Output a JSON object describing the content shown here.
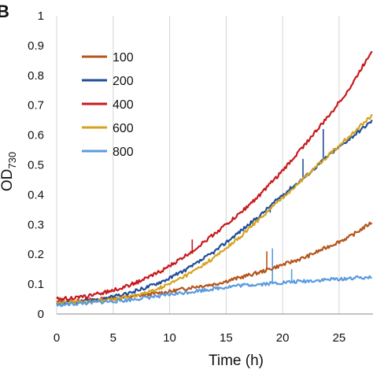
{
  "panel_label": "B",
  "chart_data": {
    "type": "line",
    "xlabel": "Time (h)",
    "ylabel": "OD",
    "ylabel_subscript": "730",
    "xlim": [
      0,
      28
    ],
    "ylim": [
      0,
      1
    ],
    "xticks": [
      0,
      5,
      10,
      15,
      20,
      25
    ],
    "yticks": [
      0,
      0.1,
      0.2,
      0.3,
      0.4,
      0.5,
      0.6,
      0.7,
      0.8,
      0.9,
      1
    ],
    "ytick_labels": [
      "0",
      "0.1",
      "0.2",
      "0.3",
      "0.4",
      "0.5",
      "0.6",
      "0.7",
      "0.8",
      "0.9",
      "1"
    ],
    "grid": {
      "vertical": true,
      "horizontal": false
    },
    "legend_position": "top-left",
    "x": [
      0,
      2,
      4,
      6,
      8,
      10,
      12,
      14,
      16,
      18,
      20,
      22,
      24,
      26,
      28
    ],
    "series": [
      {
        "name": "100",
        "color": "#b5541b",
        "values": [
          0.04,
          0.045,
          0.05,
          0.055,
          0.065,
          0.075,
          0.09,
          0.1,
          0.12,
          0.14,
          0.165,
          0.19,
          0.225,
          0.26,
          0.31
        ]
      },
      {
        "name": "200",
        "color": "#1f4e99",
        "values": [
          0.035,
          0.04,
          0.05,
          0.065,
          0.09,
          0.12,
          0.16,
          0.21,
          0.27,
          0.33,
          0.4,
          0.46,
          0.53,
          0.59,
          0.65
        ]
      },
      {
        "name": "400",
        "color": "#c8191d",
        "values": [
          0.05,
          0.055,
          0.07,
          0.09,
          0.12,
          0.16,
          0.21,
          0.27,
          0.33,
          0.4,
          0.48,
          0.57,
          0.66,
          0.76,
          0.89
        ]
      },
      {
        "name": "600",
        "color": "#d6a31f",
        "values": [
          0.035,
          0.04,
          0.045,
          0.055,
          0.07,
          0.1,
          0.14,
          0.19,
          0.25,
          0.32,
          0.39,
          0.46,
          0.53,
          0.6,
          0.67
        ]
      },
      {
        "name": "800",
        "color": "#5a9be0",
        "values": [
          0.03,
          0.035,
          0.04,
          0.045,
          0.055,
          0.065,
          0.075,
          0.085,
          0.095,
          0.1,
          0.105,
          0.11,
          0.115,
          0.12,
          0.125
        ]
      }
    ],
    "spikes": [
      {
        "series": "200",
        "x": 18.9,
        "y": 0.34
      },
      {
        "series": "200",
        "x": 21.8,
        "y": 0.52
      },
      {
        "series": "200",
        "x": 23.6,
        "y": 0.62
      },
      {
        "series": "400",
        "x": 12.0,
        "y": 0.25
      },
      {
        "series": "100",
        "x": 18.6,
        "y": 0.21
      },
      {
        "series": "800",
        "x": 19.1,
        "y": 0.22
      },
      {
        "series": "800",
        "x": 20.8,
        "y": 0.15
      }
    ]
  }
}
